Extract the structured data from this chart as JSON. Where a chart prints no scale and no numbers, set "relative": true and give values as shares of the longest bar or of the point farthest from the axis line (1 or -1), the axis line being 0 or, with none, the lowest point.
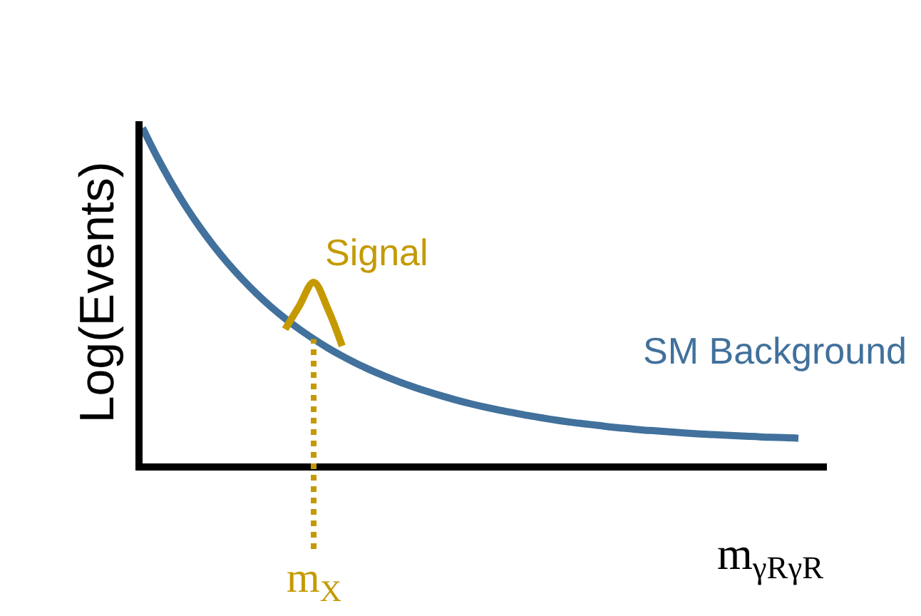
{
  "chart_data": {
    "type": "line",
    "relative": true,
    "ylabel": "Log(Events)",
    "xlabel": "m$_{γRγR}$",
    "annotations": [
      "m$_{X}$"
    ],
    "categories": [
      null,
      null,
      null,
      null,
      null,
      null,
      null,
      null,
      null,
      null,
      null,
      null,
      null,
      null,
      null,
      null,
      null,
      null,
      null,
      null,
      null,
      null,
      null,
      null,
      null,
      null,
      null,
      null,
      null,
      null,
      null,
      null,
      null,
      null,
      null,
      null,
      null,
      null,
      null,
      null,
      null,
      null,
      null,
      null,
      null,
      null,
      null
    ],
    "series": [
      {
        "name": "SM Background",
        "color": "#41719c",
        "values": [
          1.0,
          0.915,
          0.838,
          0.768,
          0.705,
          0.648,
          0.596,
          0.549,
          0.506,
          0.467,
          0.432,
          0.4,
          0.371,
          0.344,
          0.32,
          0.298,
          0.278,
          0.26,
          0.243,
          0.228,
          0.214,
          0.201,
          0.189,
          0.178,
          0.168,
          0.159,
          0.151,
          0.143,
          0.136,
          0.129,
          0.123,
          0.118,
          0.113,
          0.108,
          0.104,
          0.1,
          0.097,
          0.094,
          0.091,
          0.088,
          0.086,
          0.084,
          0.082,
          0.08,
          0.078,
          0.077,
          0.075
        ]
      },
      {
        "name": "Signal",
        "color": "#c49a00",
        "values": [
          null,
          null,
          null,
          null,
          null,
          null,
          null,
          null,
          null,
          null,
          0.4,
          0.47,
          0.54,
          0.46,
          0.35,
          null,
          null,
          null,
          null,
          null,
          null,
          null,
          null,
          null,
          null,
          null,
          null,
          null,
          null,
          null,
          null,
          null,
          null,
          null,
          null,
          null,
          null,
          null,
          null,
          null,
          null,
          null,
          null,
          null,
          null,
          null,
          null
        ]
      }
    ],
    "legend": false,
    "marker": "none",
    "line_style": "solid"
  }
}
